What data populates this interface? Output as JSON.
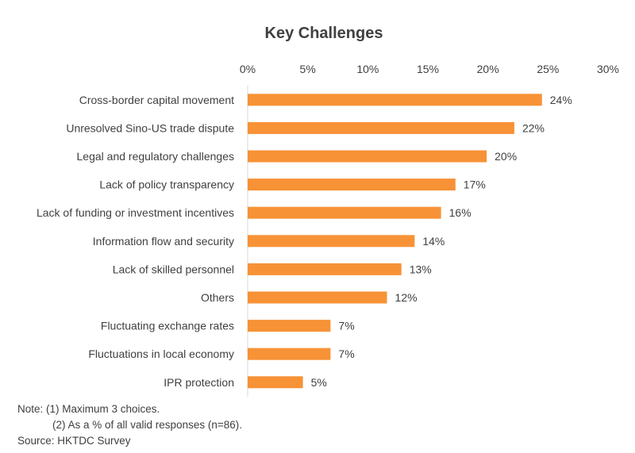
{
  "chart_data": {
    "type": "bar",
    "orientation": "horizontal",
    "title": "Key Challenges",
    "xlabel": "",
    "ylabel": "",
    "xlim": [
      0,
      30
    ],
    "x_ticks": [
      "0%",
      "5%",
      "10%",
      "15%",
      "20%",
      "25%",
      "30%"
    ],
    "x_axis_position": "top",
    "grid": false,
    "legend": "none",
    "bar_color": "#F79236",
    "categories": [
      "Cross-border capital movement",
      "Unresolved Sino-US trade dispute",
      "Legal and regulatory challenges",
      "Lack of policy transparency",
      "Lack of funding or investment incentives",
      "Information flow and security",
      "Lack of skilled personnel",
      "Others",
      "Fluctuating exchange rates",
      "Fluctuations in local economy",
      "IPR protection"
    ],
    "values": [
      24.5,
      22.2,
      19.9,
      17.3,
      16.1,
      13.9,
      12.8,
      11.6,
      6.9,
      6.9,
      4.6
    ],
    "data_labels": [
      "24%",
      "22%",
      "20%",
      "17%",
      "16%",
      "14%",
      "13%",
      "12%",
      "7%",
      "7%",
      "5%"
    ]
  },
  "notes": {
    "line1": "Note: (1) Maximum 3 choices.",
    "line2": "(2) As a % of all valid responses (n=86).",
    "line3": "Source:  HKTDC Survey"
  }
}
